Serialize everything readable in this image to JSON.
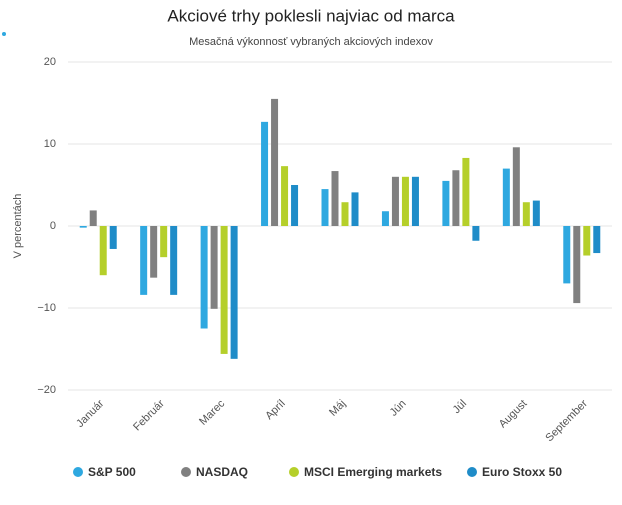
{
  "chart_data": {
    "type": "bar",
    "title": "Akciové trhy poklesli najviac od marca",
    "subtitle": "Mesačná výkonnosť vybraných akciových indexov",
    "y_label": "V percentách",
    "categories": [
      "Január",
      "Február",
      "Marec",
      "Apríl",
      "Máj",
      "Jún",
      "Júl",
      "August",
      "September"
    ],
    "series": [
      {
        "name": "S&P 500",
        "color": "#2ea8e0",
        "values": [
          -0.2,
          -8.4,
          -12.5,
          12.7,
          4.5,
          1.8,
          5.5,
          7.0,
          -7.0
        ]
      },
      {
        "name": "NASDAQ",
        "color": "#808080",
        "values": [
          1.9,
          -6.3,
          -10.1,
          15.5,
          6.7,
          6.0,
          6.8,
          9.6,
          -9.4
        ]
      },
      {
        "name": "MSCI Emerging markets",
        "color": "#b5cf2a",
        "values": [
          -6.0,
          -3.8,
          -15.6,
          7.3,
          2.9,
          6.0,
          8.3,
          2.9,
          -3.6
        ]
      },
      {
        "name": "Euro Stoxx 50",
        "color": "#1f8cc8",
        "values": [
          -2.8,
          -8.4,
          -16.2,
          5.0,
          4.1,
          6.0,
          -1.8,
          3.1,
          -3.3
        ]
      }
    ],
    "ylim": [
      -20,
      20
    ],
    "yticks": [
      {
        "value": -20,
        "label": "−20"
      },
      {
        "value": -10,
        "label": "−10"
      },
      0,
      10,
      20
    ],
    "grid": true,
    "legend": "bottom"
  }
}
